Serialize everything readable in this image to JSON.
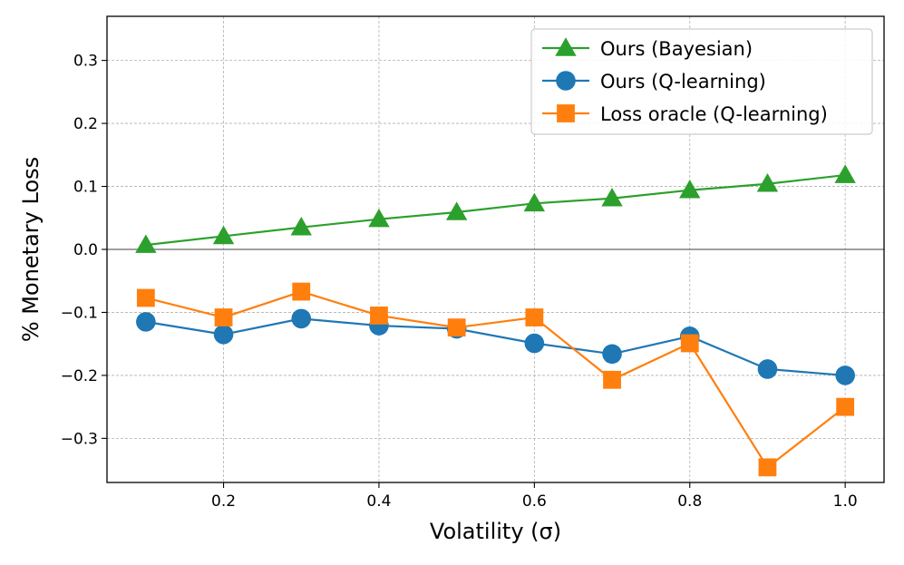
{
  "chart_data": {
    "type": "line",
    "xlabel": "Volatility (σ)",
    "ylabel": "% Monetary Loss",
    "xlim": [
      0.05,
      1.05
    ],
    "ylim": [
      -0.37,
      0.37
    ],
    "x_ticks": [
      0.2,
      0.4,
      0.6,
      0.8,
      1.0
    ],
    "x_tick_labels": [
      "0.2",
      "0.4",
      "0.6",
      "0.8",
      "1.0"
    ],
    "y_ticks": [
      -0.3,
      -0.2,
      -0.1,
      0.0,
      0.1,
      0.2,
      0.3
    ],
    "y_tick_labels": [
      "−0.3",
      "−0.2",
      "−0.1",
      "0.0",
      "0.1",
      "0.2",
      "0.3"
    ],
    "grid": true,
    "zero_line": true,
    "legend_position": "top-right",
    "x": [
      0.1,
      0.2,
      0.3,
      0.4,
      0.5,
      0.6,
      0.7,
      0.8,
      0.9,
      1.0
    ],
    "series": [
      {
        "name": "Ours (Bayesian)",
        "color": "#2ca02c",
        "marker": "triangle",
        "values": [
          0.007,
          0.021,
          0.035,
          0.048,
          0.059,
          0.073,
          0.081,
          0.094,
          0.104,
          0.118
        ]
      },
      {
        "name": "Ours (Q-learning)",
        "color": "#1f77b4",
        "marker": "circle",
        "values": [
          -0.115,
          -0.135,
          -0.11,
          -0.121,
          -0.126,
          -0.149,
          -0.166,
          -0.138,
          -0.19,
          -0.2
        ]
      },
      {
        "name": "Loss oracle (Q-learning)",
        "color": "#ff7f0e",
        "marker": "square",
        "values": [
          -0.077,
          -0.108,
          -0.067,
          -0.105,
          -0.124,
          -0.108,
          -0.207,
          -0.149,
          -0.346,
          -0.25
        ]
      }
    ]
  }
}
